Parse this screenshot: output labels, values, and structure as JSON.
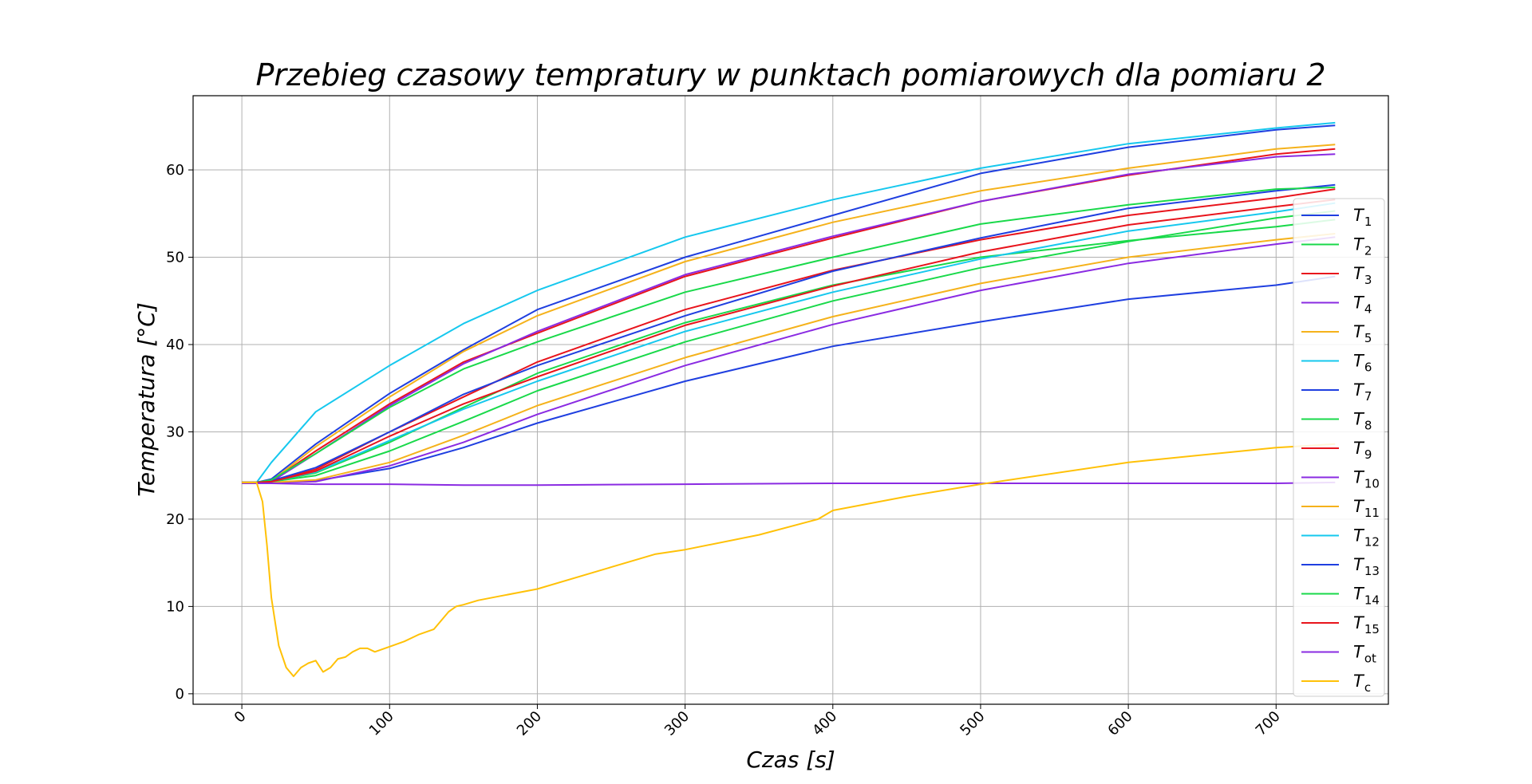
{
  "chart_data": {
    "type": "line",
    "title": "Przebieg czasowy tempratury w punktach pomiarowych dla pomiaru 2",
    "xlabel": "Czas [s]",
    "ylabel": "Temperatura [°C]",
    "xlim": [
      -33,
      776
    ],
    "ylim": [
      -1.2,
      68.5
    ],
    "xticks": [
      0,
      100,
      200,
      300,
      400,
      500,
      600,
      700
    ],
    "yticks": [
      0,
      10,
      20,
      30,
      40,
      50,
      60
    ],
    "grid": true,
    "legend_position": "right",
    "series": [
      {
        "name": "T",
        "sub": "1",
        "color": "#1f3fe0",
        "x": [
          0,
          10,
          20,
          50,
          100,
          150,
          200,
          300,
          400,
          500,
          600,
          700,
          740
        ],
        "y": [
          24.2,
          24.2,
          24.2,
          24.4,
          25.8,
          28.2,
          31,
          35.8,
          39.8,
          42.6,
          45.2,
          46.8,
          47.8
        ]
      },
      {
        "name": "T",
        "sub": "2",
        "color": "#19d94a",
        "x": [
          0,
          10,
          20,
          50,
          100,
          150,
          200,
          300,
          400,
          500,
          600,
          700,
          740
        ],
        "y": [
          24.2,
          24.2,
          24.3,
          25.3,
          28.8,
          32.8,
          36.7,
          42.5,
          46.8,
          50,
          51.9,
          53.5,
          54.3
        ]
      },
      {
        "name": "T",
        "sub": "3",
        "color": "#e8141c",
        "x": [
          0,
          10,
          20,
          50,
          100,
          150,
          200,
          300,
          400,
          500,
          600,
          700,
          740
        ],
        "y": [
          24.2,
          24.2,
          24.3,
          25.7,
          30,
          34,
          38,
          44,
          48.5,
          52,
          54.8,
          56.8,
          57.8
        ]
      },
      {
        "name": "T",
        "sub": "4",
        "color": "#8a2be2",
        "x": [
          0,
          10,
          20,
          50,
          100,
          150,
          200,
          300,
          400,
          500,
          600,
          700,
          740
        ],
        "y": [
          24.2,
          24.2,
          24.2,
          24.3,
          26.1,
          28.8,
          32,
          37.6,
          42.3,
          46.2,
          49.3,
          51.5,
          52.3
        ]
      },
      {
        "name": "T",
        "sub": "5",
        "color": "#f5b21b",
        "x": [
          0,
          10,
          20,
          50,
          100,
          150,
          200,
          300,
          400,
          500,
          600,
          700,
          740
        ],
        "y": [
          24.2,
          24.2,
          24.2,
          24.5,
          26.5,
          29.6,
          33,
          38.5,
          43.2,
          47,
          50,
          52,
          52.7
        ]
      },
      {
        "name": "T",
        "sub": "6",
        "color": "#16c8ee",
        "x": [
          0,
          10,
          20,
          50,
          100,
          150,
          200,
          300,
          400,
          500,
          600,
          700,
          740
        ],
        "y": [
          24.2,
          24.2,
          26.5,
          32.3,
          37.6,
          42.4,
          46.2,
          52.3,
          56.6,
          60.2,
          63,
          64.8,
          65.4
        ]
      },
      {
        "name": "T",
        "sub": "7",
        "color": "#1f3fe0",
        "x": [
          0,
          10,
          20,
          50,
          100,
          150,
          200,
          300,
          400,
          500,
          600,
          700,
          740
        ],
        "y": [
          24.2,
          24.2,
          24.6,
          28.6,
          34.4,
          39.4,
          44,
          50,
          54.8,
          59.6,
          62.6,
          64.6,
          65.1
        ]
      },
      {
        "name": "T",
        "sub": "8",
        "color": "#19d94a",
        "x": [
          0,
          10,
          20,
          50,
          100,
          150,
          200,
          300,
          400,
          500,
          600,
          700,
          740
        ],
        "y": [
          24.2,
          24.2,
          24.3,
          25,
          27.8,
          31.2,
          34.7,
          40.3,
          45,
          48.8,
          51.8,
          54.5,
          55.3
        ]
      },
      {
        "name": "T",
        "sub": "9",
        "color": "#e8141c",
        "x": [
          0,
          10,
          20,
          50,
          100,
          150,
          200,
          300,
          400,
          500,
          600,
          700,
          740
        ],
        "y": [
          24.2,
          24.2,
          24.4,
          27.8,
          33.2,
          38,
          41.3,
          47.8,
          52.2,
          56.4,
          59.4,
          61.8,
          62.4
        ]
      },
      {
        "name": "T",
        "sub": "10",
        "color": "#8a2be2",
        "x": [
          0,
          10,
          20,
          50,
          100,
          150,
          200,
          300,
          400,
          500,
          600,
          700,
          740
        ],
        "y": [
          24.2,
          24.2,
          24.3,
          27.5,
          33,
          37.8,
          41.5,
          48,
          52.4,
          56.4,
          59.5,
          61.5,
          61.8
        ]
      },
      {
        "name": "T",
        "sub": "11",
        "color": "#f5b21b",
        "x": [
          0,
          10,
          20,
          50,
          100,
          150,
          200,
          300,
          400,
          500,
          600,
          700,
          740
        ],
        "y": [
          24.2,
          24.2,
          24.4,
          28.3,
          34,
          39.2,
          43.3,
          49.5,
          54,
          57.6,
          60.2,
          62.4,
          62.9
        ]
      },
      {
        "name": "T",
        "sub": "12",
        "color": "#16c8ee",
        "x": [
          0,
          10,
          20,
          50,
          100,
          150,
          200,
          300,
          400,
          500,
          600,
          700,
          740
        ],
        "y": [
          24.2,
          24.2,
          24.3,
          25.4,
          29,
          32.6,
          35.8,
          41.5,
          46,
          49.8,
          53,
          55.2,
          56.2
        ]
      },
      {
        "name": "T",
        "sub": "13",
        "color": "#1f3fe0",
        "x": [
          0,
          10,
          20,
          50,
          100,
          150,
          200,
          300,
          400,
          500,
          600,
          700,
          740
        ],
        "y": [
          24.2,
          24.2,
          24.4,
          25.9,
          30,
          34.3,
          37.6,
          43.3,
          48.4,
          52.2,
          55.6,
          57.6,
          58.3
        ]
      },
      {
        "name": "T",
        "sub": "14",
        "color": "#19d94a",
        "x": [
          0,
          10,
          20,
          50,
          100,
          150,
          200,
          300,
          400,
          500,
          600,
          700,
          740
        ],
        "y": [
          24.2,
          24.2,
          24.5,
          27.5,
          32.8,
          37.2,
          40.3,
          46,
          50,
          53.8,
          56,
          57.8,
          58
        ]
      },
      {
        "name": "T",
        "sub": "15",
        "color": "#e8141c",
        "x": [
          0,
          10,
          20,
          50,
          100,
          150,
          200,
          300,
          400,
          500,
          600,
          700,
          740
        ],
        "y": [
          24.2,
          24.2,
          24.3,
          25.5,
          29.5,
          33.2,
          36.3,
          42.2,
          46.7,
          50.6,
          53.7,
          55.8,
          56.6
        ]
      },
      {
        "name": "T",
        "sub": "ot",
        "color": "#8a2be2",
        "x": [
          0,
          10,
          20,
          50,
          100,
          150,
          200,
          300,
          400,
          500,
          600,
          700,
          740
        ],
        "y": [
          24.1,
          24.1,
          24.1,
          24,
          24,
          23.9,
          23.9,
          24,
          24.1,
          24.1,
          24.1,
          24.1,
          24.2
        ]
      },
      {
        "name": "T",
        "sub": "c",
        "color": "#ffc107",
        "x": [
          0,
          10,
          14,
          17,
          20,
          25,
          30,
          35,
          40,
          45,
          50,
          55,
          60,
          65,
          70,
          75,
          80,
          85,
          90,
          100,
          110,
          120,
          130,
          140,
          145,
          150,
          160,
          175,
          200,
          250,
          280,
          300,
          350,
          390,
          400,
          450,
          500,
          600,
          700,
          740
        ],
        "y": [
          24.2,
          24.2,
          22,
          17,
          11,
          5.5,
          3,
          2,
          3,
          3.5,
          3.8,
          2.5,
          3,
          4,
          4.2,
          4.8,
          5.2,
          5.2,
          4.8,
          5.4,
          6,
          6.8,
          7.4,
          9.4,
          10,
          10.2,
          10.7,
          11.2,
          12,
          14.5,
          16,
          16.5,
          18.2,
          20,
          21,
          22.6,
          24,
          26.5,
          28.2,
          28.6
        ]
      }
    ]
  }
}
